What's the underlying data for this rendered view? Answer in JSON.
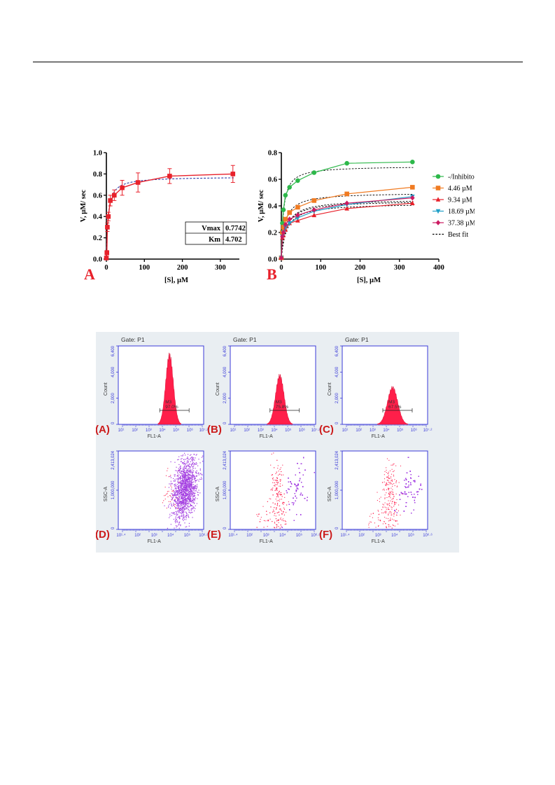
{
  "chart_data": [
    {
      "type": "scatter",
      "panel_letter": "A",
      "xlabel": "[S], µM",
      "ylabel": "V, µM/ sec",
      "xlim": [
        0,
        350
      ],
      "ylim": [
        0,
        1.0
      ],
      "x_ticks": [
        "0",
        "100",
        "200",
        "300"
      ],
      "y_ticks": [
        "0.0",
        "0.2",
        "0.4",
        "0.6",
        "0.8",
        "1.0"
      ],
      "series": [
        {
          "color": "#e8212b",
          "points": [
            {
              "x": 0,
              "y": 0.01,
              "err": 0.01
            },
            {
              "x": 1.3,
              "y": 0.06,
              "err": 0.02
            },
            {
              "x": 2.6,
              "y": 0.3,
              "err": 0.04
            },
            {
              "x": 5.2,
              "y": 0.4,
              "err": 0.04
            },
            {
              "x": 10.4,
              "y": 0.55,
              "err": 0.05
            },
            {
              "x": 20.8,
              "y": 0.6,
              "err": 0.05
            },
            {
              "x": 41.6,
              "y": 0.67,
              "err": 0.07
            },
            {
              "x": 83.2,
              "y": 0.72,
              "err": 0.09
            },
            {
              "x": 166.5,
              "y": 0.78,
              "err": 0.07
            },
            {
              "x": 333,
              "y": 0.8,
              "err": 0.08
            }
          ]
        }
      ],
      "fit": {
        "style": "dashed",
        "color": "#2b3aa8",
        "Vmax": 0.7742,
        "Km": 4.702
      },
      "table": [
        {
          "label": "Vmax",
          "value": "0.7742"
        },
        {
          "label": "Km",
          "value": "4.702"
        }
      ]
    },
    {
      "type": "scatter",
      "panel_letter": "B",
      "xlabel": "[S], µM",
      "ylabel": "V, µM/ sec",
      "xlim": [
        0,
        400
      ],
      "ylim": [
        0,
        0.8
      ],
      "x_ticks": [
        "0",
        "100",
        "200",
        "300",
        "400"
      ],
      "y_ticks": [
        "0.0",
        "0.2",
        "0.4",
        "0.6",
        "0.8"
      ],
      "x": [
        0,
        2.6,
        5.2,
        10.4,
        20.8,
        41.6,
        83.2,
        166.5,
        333
      ],
      "series": [
        {
          "name": "-/Inhibitor",
          "color": "#2db84a",
          "marker": "circle",
          "values": [
            0.01,
            0.27,
            0.37,
            0.48,
            0.54,
            0.59,
            0.65,
            0.72,
            0.73
          ],
          "Vmax": 0.7,
          "Km": 5.5
        },
        {
          "name": "4.46 µM",
          "color": "#f07b22",
          "marker": "square",
          "values": [
            0.01,
            0.2,
            0.24,
            0.3,
            0.35,
            0.39,
            0.44,
            0.49,
            0.54
          ],
          "Vmax": 0.5,
          "Km": 9
        },
        {
          "name": "9.34 µM",
          "color": "#e8212b",
          "marker": "triangle-up",
          "values": [
            0.01,
            0.16,
            0.18,
            0.22,
            0.27,
            0.29,
            0.33,
            0.38,
            0.42
          ],
          "Vmax": 0.42,
          "Km": 13
        },
        {
          "name": "18.69 µM",
          "color": "#21a0c8",
          "marker": "triangle-down",
          "values": [
            0.01,
            0.17,
            0.2,
            0.24,
            0.27,
            0.31,
            0.36,
            0.41,
            0.47
          ],
          "Vmax": 0.44,
          "Km": 12
        },
        {
          "name": "37.38 µM",
          "color": "#cc1b62",
          "marker": "diamond",
          "values": [
            0.01,
            0.17,
            0.2,
            0.26,
            0.3,
            0.33,
            0.37,
            0.42,
            0.46
          ],
          "Vmax": 0.45,
          "Km": 12
        }
      ],
      "legend_extra": "Best fit",
      "legend_position": "right"
    }
  ],
  "flow_panels": [
    {
      "id": "A",
      "label": "(A)",
      "kind": "histogram",
      "gate": "Gate: P1",
      "ylabel": "Count",
      "xlabel": "FL1-A",
      "y_ticks": [
        "0",
        "2,000",
        "4,000",
        "6,400"
      ],
      "marker": "M3",
      "percent": "97.0%",
      "x_tick_labels": [
        "10¹",
        "10²",
        "10³",
        "10⁴",
        "10⁵",
        "10⁶",
        "10⁷·²"
      ],
      "peak_pos": 0.6,
      "peak_height": 0.88,
      "peak_width": 0.045
    },
    {
      "id": "B",
      "label": "(B)",
      "kind": "histogram",
      "gate": "Gate: P1",
      "ylabel": "Count",
      "xlabel": "FL1-A",
      "y_ticks": [
        "0",
        "2,000",
        "4,000",
        "6,400"
      ],
      "marker": "M3",
      "percent": "75.8%",
      "x_tick_labels": [
        "10¹",
        "10²",
        "10³",
        "10⁴",
        "10⁵",
        "10⁶",
        "10⁷·²"
      ],
      "peak_pos": 0.58,
      "peak_height": 0.62,
      "peak_width": 0.05
    },
    {
      "id": "C",
      "label": "(C)",
      "kind": "histogram",
      "gate": "Gate: P1",
      "ylabel": "Count",
      "xlabel": "FL1-A",
      "y_ticks": [
        "0",
        "2,000",
        "4,000",
        "6,400"
      ],
      "marker": "M3",
      "percent": "67.5%",
      "x_tick_labels": [
        "10¹",
        "10²",
        "10³",
        "10⁴",
        "10⁵",
        "10⁶",
        "10⁷·²"
      ],
      "peak_pos": 0.59,
      "peak_height": 0.47,
      "peak_width": 0.06
    },
    {
      "id": "D",
      "label": "(D)",
      "kind": "dotplot",
      "ylabel": "SSC-A",
      "xlabel": "FL1-A",
      "y_ticks": [
        "0",
        "1,000,000",
        "2,413,024"
      ],
      "x_tick_labels": [
        "10¹·⁴",
        "10²",
        "10³",
        "10⁴",
        "10⁵",
        "10⁶·⁶"
      ],
      "purple_center": 0.78,
      "red_fraction": 0.02
    },
    {
      "id": "E",
      "label": "(E)",
      "kind": "dotplot",
      "ylabel": "SSC-A",
      "xlabel": "FL1-A",
      "y_ticks": [
        "0",
        "1,000,000",
        "2,413,024"
      ],
      "x_tick_labels": [
        "10¹·⁴",
        "10²",
        "10³",
        "10⁴",
        "10⁵",
        "10⁶·⁶"
      ],
      "purple_center": 0.78,
      "red_fraction": 0.3
    },
    {
      "id": "F",
      "label": "(F)",
      "kind": "dotplot",
      "ylabel": "SSC-A",
      "xlabel": "FL1-A",
      "y_ticks": [
        "0",
        "1,000,000",
        "2,413,024"
      ],
      "x_tick_labels": [
        "10¹·⁴",
        "10²",
        "10³",
        "10⁴",
        "10⁵",
        "10⁶·⁶"
      ],
      "purple_center": 0.8,
      "red_fraction": 0.25
    }
  ],
  "colors": {
    "flow_bg": "#e9eef2",
    "axis_blue": "#3a3ad8",
    "hist_red": "#ff1f4a",
    "dot_purple": "#a23ce0",
    "dot_red": "#ff2a55",
    "panel_label": "#cc1b1b"
  }
}
